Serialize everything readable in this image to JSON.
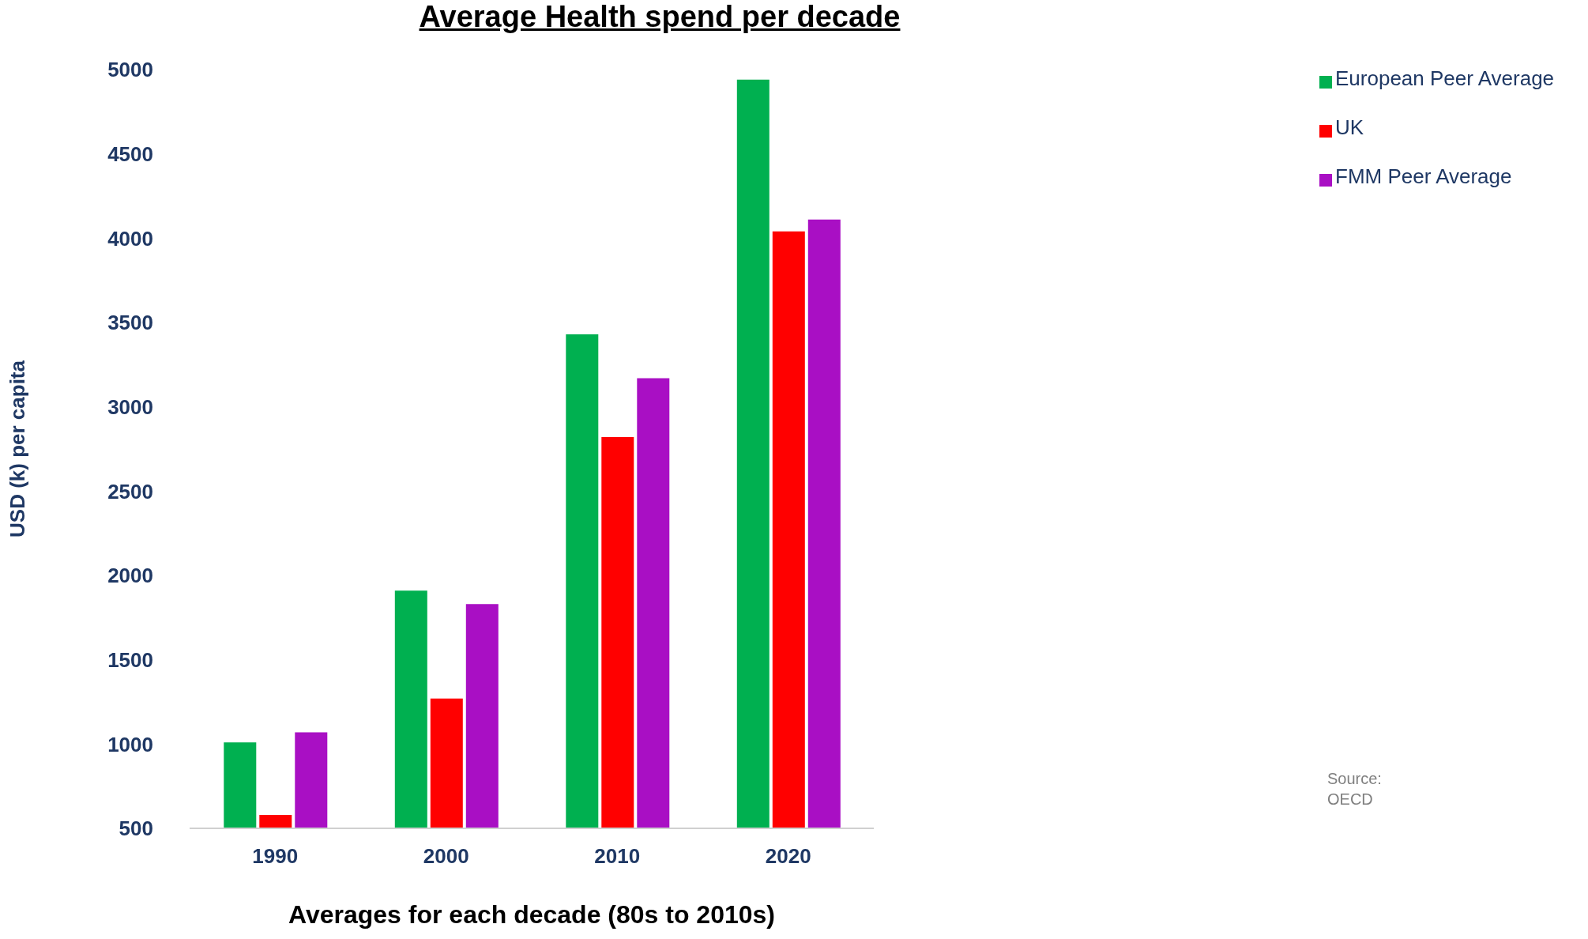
{
  "chart_data": {
    "type": "bar",
    "title": "Average Health spend per decade",
    "xlabel": "Averages for each decade (80s to 2010s)",
    "ylabel": "USD (k) per capita",
    "categories": [
      "1990",
      "2000",
      "2010",
      "2020"
    ],
    "series": [
      {
        "name": "European Peer Average",
        "color": "#00b050",
        "values": [
          1010,
          1910,
          3430,
          4940
        ]
      },
      {
        "name": "UK",
        "color": "#ff0000",
        "values": [
          580,
          1270,
          2820,
          4040
        ]
      },
      {
        "name": "FMM Peer Average",
        "color": "#a90fc4",
        "values": [
          1070,
          1830,
          3170,
          4110
        ]
      }
    ],
    "ylim": [
      500,
      5000
    ],
    "yticks": [
      500,
      1000,
      1500,
      2000,
      2500,
      3000,
      3500,
      4000,
      4500,
      5000
    ],
    "grid": false,
    "legend": "top right",
    "annotations": [
      "Source: OECD"
    ]
  }
}
